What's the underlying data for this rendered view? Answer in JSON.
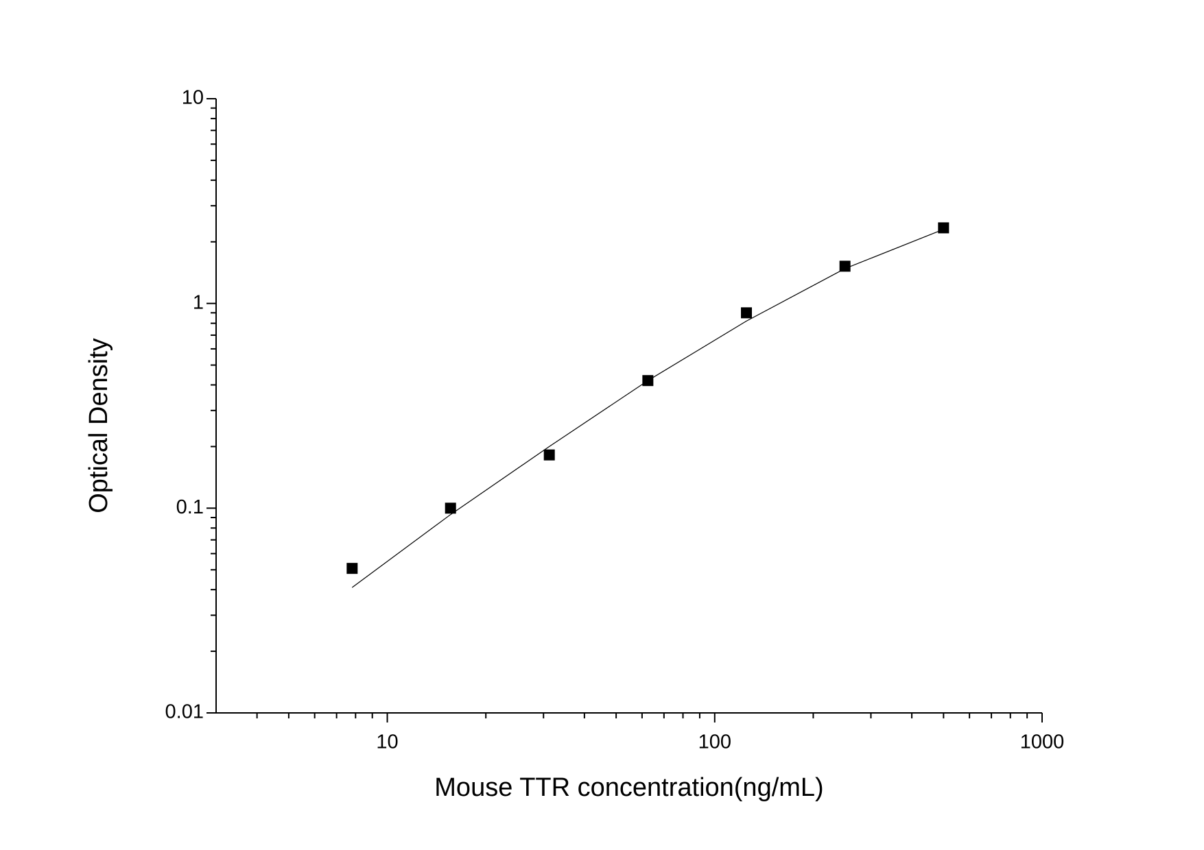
{
  "chart_data": {
    "type": "scatter",
    "x_label": "Mouse TTR concentration(ng/mL)",
    "y_label": "Optical Density",
    "x": [
      7.81,
      15.6,
      31.25,
      62.5,
      125,
      250,
      500
    ],
    "series": [
      {
        "type": "scatter",
        "marker": "square",
        "color": "#000000",
        "values": [
          0.0508,
          0.1,
          0.182,
          0.42,
          0.9,
          1.52,
          2.34
        ]
      },
      {
        "type": "line",
        "color": "#000000",
        "values": [
          0.041,
          0.093,
          0.2,
          0.42,
          0.82,
          1.48,
          2.3
        ]
      }
    ],
    "xlog": true,
    "ylog": true,
    "xlim": [
      3,
      1000
    ],
    "ylim": [
      0.01,
      10
    ],
    "xticks": [
      10,
      100,
      1000
    ],
    "yticks": [
      0.01,
      0.1,
      1,
      10
    ],
    "xminorticks": [
      4,
      5,
      6,
      7,
      8,
      9,
      20,
      30,
      40,
      50,
      60,
      70,
      80,
      90,
      200,
      300,
      400,
      500,
      600,
      700,
      800,
      900
    ],
    "yminorticks": [
      0.02,
      0.03,
      0.04,
      0.05,
      0.06,
      0.07,
      0.08,
      0.09,
      0.2,
      0.3,
      0.4,
      0.5,
      0.6,
      0.7,
      0.8,
      0.9,
      2,
      3,
      4,
      5,
      6,
      7,
      8,
      9
    ]
  }
}
